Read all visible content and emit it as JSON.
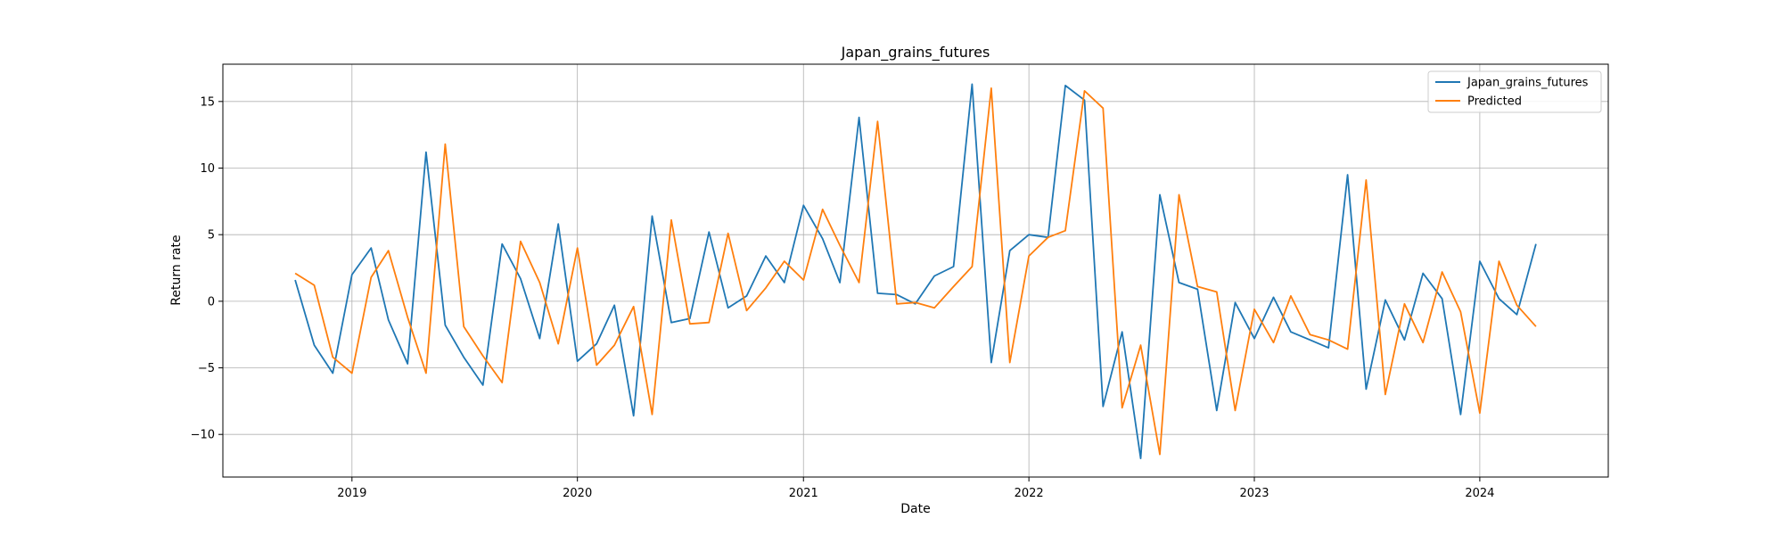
{
  "chart_data": {
    "type": "line",
    "title": "Japan_grains_futures",
    "xlabel": "Date",
    "ylabel": "Return rate",
    "x_dates": [
      "2018-10",
      "2018-11",
      "2018-12",
      "2019-01",
      "2019-02",
      "2019-03",
      "2019-04",
      "2019-05",
      "2019-06",
      "2019-07",
      "2019-08",
      "2019-09",
      "2019-10",
      "2019-11",
      "2019-12",
      "2020-01",
      "2020-02",
      "2020-03",
      "2020-04",
      "2020-05",
      "2020-06",
      "2020-07",
      "2020-08",
      "2020-09",
      "2020-10",
      "2020-11",
      "2020-12",
      "2021-01",
      "2021-02",
      "2021-03",
      "2021-04",
      "2021-05",
      "2021-06",
      "2021-07",
      "2021-08",
      "2021-09",
      "2021-10",
      "2021-11",
      "2021-12",
      "2022-01",
      "2022-02",
      "2022-03",
      "2022-04",
      "2022-05",
      "2022-06",
      "2022-07",
      "2022-08",
      "2022-09",
      "2022-10",
      "2022-11",
      "2022-12",
      "2023-01",
      "2023-02",
      "2023-03",
      "2023-04",
      "2023-05",
      "2023-06",
      "2023-07",
      "2023-08",
      "2023-09",
      "2023-10",
      "2023-11",
      "2023-12",
      "2024-01",
      "2024-02",
      "2024-03",
      "2024-04"
    ],
    "series": [
      {
        "name": "Japan_grains_futures",
        "color": "#1f77b4",
        "values": [
          1.6,
          -3.3,
          -5.4,
          2.0,
          4.0,
          -1.4,
          -4.7,
          11.2,
          -1.8,
          -4.2,
          -6.3,
          4.3,
          1.7,
          -2.8,
          5.8,
          -4.5,
          -3.2,
          -0.3,
          -8.6,
          6.4,
          -1.6,
          -1.3,
          5.2,
          -0.5,
          0.4,
          3.4,
          1.4,
          7.2,
          4.7,
          1.4,
          13.8,
          0.6,
          0.5,
          -0.2,
          1.9,
          2.6,
          16.3,
          -4.6,
          3.8,
          5.0,
          4.8,
          16.2,
          15.1,
          -7.9,
          -2.3,
          -11.8,
          8.0,
          1.4,
          0.9,
          -8.2,
          -0.1,
          -2.8,
          0.3,
          -2.3,
          -2.9,
          -3.5,
          9.5,
          -6.6,
          0.1,
          -2.9,
          2.1,
          0.2,
          -8.5,
          3.0,
          0.2,
          -1.0,
          4.3
        ]
      },
      {
        "name": "Predicted",
        "color": "#ff7f0e",
        "values": [
          2.1,
          1.2,
          -4.2,
          -5.4,
          1.8,
          3.8,
          -1.2,
          -5.4,
          11.8,
          -1.9,
          -4.1,
          -6.1,
          4.5,
          1.4,
          -3.2,
          4.0,
          -4.8,
          -3.3,
          -0.4,
          -8.5,
          6.1,
          -1.7,
          -1.6,
          5.1,
          -0.7,
          1.0,
          3.0,
          1.6,
          6.9,
          4.2,
          1.4,
          13.5,
          -0.2,
          -0.1,
          -0.5,
          1.1,
          2.6,
          16.0,
          -4.6,
          3.4,
          4.8,
          5.3,
          15.8,
          14.5,
          -8.0,
          -3.3,
          -11.5,
          8.0,
          1.1,
          0.7,
          -8.2,
          -0.6,
          -3.1,
          0.4,
          -2.5,
          -2.9,
          -3.6,
          9.1,
          -7.0,
          -0.2,
          -3.1,
          2.2,
          -0.8,
          -8.4,
          3.0,
          -0.3,
          -1.9
        ]
      }
    ],
    "x_ticks": [
      {
        "date": "2019-01",
        "label": "2019"
      },
      {
        "date": "2020-01",
        "label": "2020"
      },
      {
        "date": "2021-01",
        "label": "2021"
      },
      {
        "date": "2022-01",
        "label": "2022"
      },
      {
        "date": "2023-01",
        "label": "2023"
      },
      {
        "date": "2024-01",
        "label": "2024"
      }
    ],
    "y_ticks": [
      15,
      10,
      5,
      0,
      -5,
      -10
    ],
    "y_tick_labels": [
      "15",
      "10",
      "5",
      "0",
      "−5",
      "−10"
    ],
    "xlim": [
      "2018-06-20",
      "2024-08-10"
    ],
    "ylim": [
      -13.2,
      17.8
    ],
    "grid": true,
    "legend_position": "top-right"
  }
}
